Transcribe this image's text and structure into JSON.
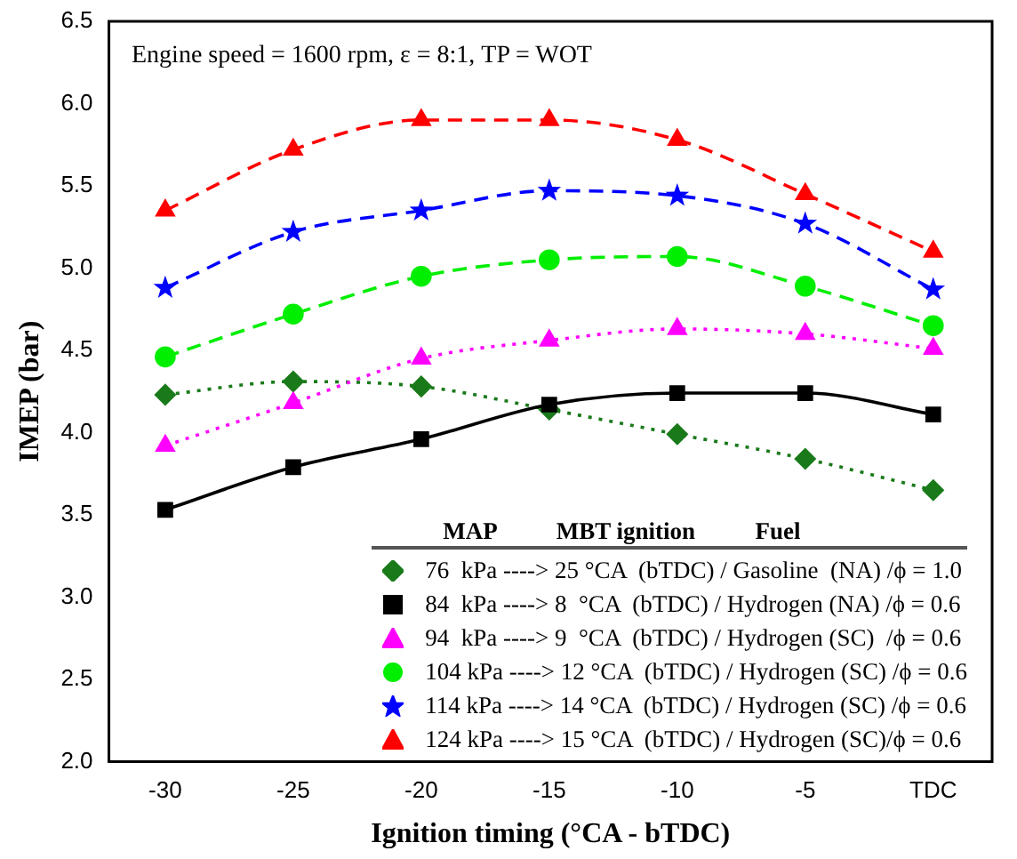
{
  "chart_data": {
    "type": "line",
    "xlabel": "Ignition timing (°CA - bTDC)",
    "ylabel": "IMEP (bar)",
    "legend_title": "MAP          MBT ignition          Fuel",
    "annotations": [
      "Engine speed = 1600 rpm, ε = 8:1, TP = WOT"
    ],
    "x": [
      -30,
      -25,
      -20,
      -15,
      -10,
      -5,
      0
    ],
    "xlim": [
      -32.2,
      2.3
    ],
    "xticks": [
      -30,
      -25,
      -20,
      -15,
      -10,
      -5,
      {
        "value": 0,
        "label": "TDC"
      }
    ],
    "ylim": [
      2.0,
      6.5
    ],
    "yticks": [
      {
        "value": 2,
        "label": "2.0"
      },
      2.5,
      {
        "value": 3,
        "label": "3.0"
      },
      3.5,
      {
        "value": 4,
        "label": "4.0"
      },
      4.5,
      {
        "value": 5,
        "label": "5.0"
      },
      5.5,
      {
        "value": 6,
        "label": "6.0"
      },
      6.5
    ],
    "grid": false,
    "legend": "bottom right",
    "series": [
      {
        "name": "76  kPa ----> 25 °CA  (bTDC) / Gasoline  (NA) /ϕ = 1.0",
        "color": "#1a7a1a",
        "marker": "diamond",
        "line_style": "dotted",
        "values": [
          4.23,
          4.31,
          4.28,
          4.14,
          3.99,
          3.84,
          3.65
        ]
      },
      {
        "name": "84  kPa ----> 8  °CA  (bTDC) / Hydrogen (NA) /ϕ = 0.6",
        "color": "#000000",
        "marker": "square",
        "line_style": "solid",
        "values": [
          3.53,
          3.79,
          3.96,
          4.17,
          4.24,
          4.24,
          4.11
        ]
      },
      {
        "name": "94  kPa ----> 9  °CA  (bTDC) / Hydrogen (SC)  /ϕ = 0.6",
        "color": "#ff00ff",
        "marker": "triangle",
        "line_style": "dotted",
        "values": [
          3.92,
          4.18,
          4.45,
          4.56,
          4.63,
          4.6,
          4.51
        ]
      },
      {
        "name": "104 kPa ----> 12 °CA  (bTDC) / Hydrogen (SC) /ϕ = 0.6",
        "color": "#00ee00",
        "marker": "circle",
        "line_style": "dashed",
        "values": [
          4.46,
          4.72,
          4.95,
          5.05,
          5.07,
          4.89,
          4.65
        ]
      },
      {
        "name": "114 kPa ----> 14 °CA  (bTDC) / Hydrogen (SC) /ϕ = 0.6",
        "color": "#0000ff",
        "marker": "star",
        "line_style": "dashed",
        "values": [
          4.88,
          5.22,
          5.35,
          5.47,
          5.44,
          5.27,
          4.87
        ]
      },
      {
        "name": "124 kPa ----> 15 °CA  (bTDC) / Hydrogen (SC)/ϕ = 0.6",
        "color": "#ff0000",
        "marker": "triangle",
        "line_style": "dashed",
        "values": [
          5.35,
          5.72,
          5.9,
          5.9,
          5.78,
          5.45,
          5.1
        ]
      }
    ]
  }
}
